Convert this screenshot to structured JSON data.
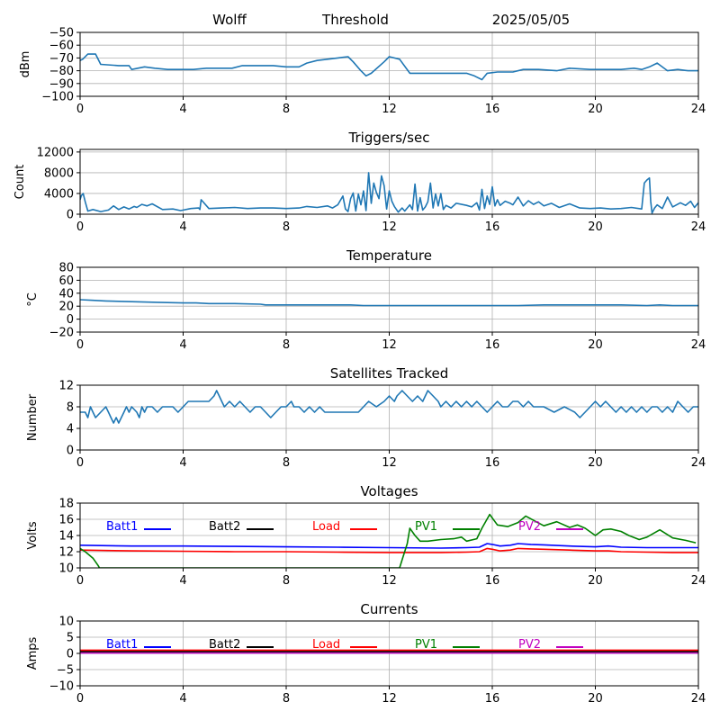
{
  "header": {
    "station": "Wolff",
    "mode": "Threshold",
    "date": "2025/05/05"
  },
  "colors": {
    "series": "#1f77b4",
    "grid": "#b0b0b0",
    "Batt1": "#0000ff",
    "Batt2": "#000000",
    "Load": "#ff0000",
    "PV1": "#008000",
    "PV2": "#c000c0"
  },
  "chart_data": [
    {
      "type": "line",
      "title": "",
      "ylabel": "dBm",
      "xlim": [
        0,
        24
      ],
      "ylim": [
        -100,
        -50
      ],
      "xticks": [
        0,
        4,
        8,
        12,
        16,
        20,
        24
      ],
      "yticks": [
        -100,
        -90,
        -80,
        -70,
        -60,
        -50
      ],
      "series": [
        {
          "x": [
            0,
            0.1,
            0.3,
            0.6,
            0.8,
            1.5,
            1.9,
            2.0,
            2.5,
            2.9,
            3.4,
            3.9,
            4.4,
            4.9,
            5.4,
            5.9,
            6.3,
            7.0,
            7.5,
            8.0,
            8.5,
            8.8,
            9.2,
            9.6,
            10.0,
            10.4,
            10.6,
            10.9,
            11.1,
            11.3,
            11.8,
            12.0,
            12.4,
            12.8,
            13.5,
            14.5,
            15.0,
            15.3,
            15.6,
            15.8,
            16.2,
            16.8,
            17.2,
            17.8,
            18.5,
            19.0,
            19.8,
            20.5,
            21.0,
            21.5,
            21.8,
            22.1,
            22.4,
            22.8,
            23.2,
            23.6,
            24.0
          ],
          "y": [
            -72,
            -71,
            -67,
            -67,
            -75,
            -76,
            -76,
            -79,
            -77,
            -78,
            -79,
            -79,
            -79,
            -78,
            -78,
            -78,
            -76,
            -76,
            -76,
            -77,
            -77,
            -74,
            -72,
            -71,
            -70,
            -69,
            -73,
            -80,
            -84,
            -82,
            -73,
            -69,
            -71,
            -82,
            -82,
            -82,
            -82,
            -84,
            -87,
            -82,
            -81,
            -81,
            -79,
            -79,
            -80,
            -78,
            -79,
            -79,
            -79,
            -78,
            -79,
            -77,
            -74,
            -80,
            -79,
            -80,
            -80
          ]
        }
      ]
    },
    {
      "type": "line",
      "title": "Triggers/sec",
      "ylabel": "Count",
      "xlim": [
        0,
        24
      ],
      "ylim": [
        0,
        12500
      ],
      "xticks": [
        0,
        4,
        8,
        12,
        16,
        20,
        24
      ],
      "yticks": [
        0,
        4000,
        8000,
        12000
      ],
      "series": [
        {
          "x": [
            0,
            0.05,
            0.12,
            0.2,
            0.3,
            0.5,
            0.8,
            1.1,
            1.3,
            1.5,
            1.7,
            1.9,
            2.1,
            2.2,
            2.4,
            2.6,
            2.8,
            3.2,
            3.6,
            3.9,
            4.3,
            4.6,
            4.65,
            4.7,
            5.0,
            5.5,
            6.0,
            6.5,
            7.0,
            7.5,
            8.0,
            8.5,
            8.8,
            9.2,
            9.6,
            9.8,
            10.0,
            10.2,
            10.3,
            10.4,
            10.5,
            10.6,
            10.7,
            10.8,
            10.9,
            11.0,
            11.1,
            11.2,
            11.3,
            11.4,
            11.5,
            11.6,
            11.7,
            11.8,
            11.9,
            12.0,
            12.1,
            12.2,
            12.35,
            12.5,
            12.6,
            12.8,
            12.9,
            13.0,
            13.1,
            13.2,
            13.3,
            13.4,
            13.5,
            13.6,
            13.7,
            13.8,
            13.9,
            14.0,
            14.1,
            14.2,
            14.4,
            14.6,
            15.0,
            15.2,
            15.4,
            15.5,
            15.6,
            15.7,
            15.8,
            15.9,
            16.0,
            16.1,
            16.2,
            16.3,
            16.5,
            16.7,
            16.8,
            17.0,
            17.2,
            17.4,
            17.6,
            17.8,
            18.0,
            18.3,
            18.6,
            19.0,
            19.4,
            19.8,
            20.2,
            20.6,
            21.0,
            21.4,
            21.8,
            21.9,
            22.0,
            22.1,
            22.15,
            22.2,
            22.3,
            22.4,
            22.6,
            22.8,
            23.0,
            23.3,
            23.5,
            23.7,
            23.85,
            24.0
          ],
          "y": [
            2800,
            3600,
            4000,
            2400,
            600,
            900,
            500,
            800,
            1600,
            900,
            1400,
            1000,
            1500,
            1300,
            1900,
            1600,
            2000,
            900,
            1000,
            700,
            1100,
            1200,
            900,
            2800,
            1100,
            1200,
            1300,
            1100,
            1200,
            1200,
            1100,
            1200,
            1500,
            1300,
            1600,
            1200,
            1800,
            3500,
            1000,
            500,
            3000,
            4100,
            600,
            3900,
            1800,
            4500,
            700,
            8000,
            2100,
            6000,
            4200,
            3000,
            7400,
            5500,
            1000,
            4500,
            2500,
            1500,
            400,
            1200,
            600,
            1800,
            900,
            5800,
            600,
            3200,
            800,
            1400,
            2400,
            6000,
            1200,
            3900,
            1600,
            4000,
            900,
            1700,
            1200,
            2100,
            1700,
            1400,
            2200,
            800,
            4800,
            1100,
            3500,
            1900,
            5300,
            1600,
            2800,
            1700,
            2500,
            2100,
            1800,
            3300,
            1600,
            2600,
            1900,
            2400,
            1600,
            2100,
            1300,
            2000,
            1200,
            1100,
            1200,
            1000,
            1100,
            1300,
            1000,
            6000,
            6600,
            7000,
            2500,
            200,
            1200,
            1800,
            1100,
            3300,
            1400,
            2200,
            1700,
            2500,
            1300,
            2200
          ]
        }
      ]
    },
    {
      "type": "line",
      "title": "Temperature",
      "ylabel": "°C",
      "xlim": [
        0,
        24
      ],
      "ylim": [
        -20,
        80
      ],
      "xticks": [
        0,
        4,
        8,
        12,
        16,
        20,
        24
      ],
      "yticks": [
        -20,
        0,
        20,
        40,
        60,
        80
      ],
      "series": [
        {
          "x": [
            0,
            0.5,
            1.0,
            2.0,
            3.0,
            4.0,
            4.5,
            5.0,
            6.0,
            7.0,
            7.2,
            8.0,
            9.0,
            10.0,
            10.5,
            11.0,
            12.0,
            13.0,
            14.0,
            15.0,
            16.0,
            17.0,
            18.0,
            19.0,
            20.0,
            21.0,
            22.0,
            22.5,
            23.0,
            24.0
          ],
          "y": [
            30,
            29,
            28,
            27,
            26,
            25,
            25,
            24,
            24,
            23,
            22,
            22,
            22,
            22,
            22,
            21,
            21,
            21,
            21,
            21,
            21,
            21,
            22,
            22,
            22,
            22,
            21,
            22,
            21,
            21
          ]
        }
      ]
    },
    {
      "type": "line",
      "title": "Satellites Tracked",
      "ylabel": "Number",
      "xlim": [
        0,
        24
      ],
      "ylim": [
        0,
        12
      ],
      "xticks": [
        0,
        4,
        8,
        12,
        16,
        20,
        24
      ],
      "yticks": [
        0,
        4,
        8,
        12
      ],
      "series": [
        {
          "x": [
            0,
            0.2,
            0.3,
            0.4,
            0.5,
            0.6,
            0.8,
            1.0,
            1.1,
            1.2,
            1.3,
            1.4,
            1.5,
            1.6,
            1.7,
            1.8,
            1.9,
            2.0,
            2.2,
            2.3,
            2.4,
            2.5,
            2.6,
            2.8,
            3.0,
            3.2,
            3.4,
            3.6,
            3.8,
            4.0,
            4.2,
            4.6,
            5.0,
            5.2,
            5.3,
            5.4,
            5.5,
            5.6,
            5.8,
            6.0,
            6.2,
            6.4,
            6.6,
            6.8,
            7.0,
            7.2,
            7.4,
            7.6,
            7.8,
            8.0,
            8.2,
            8.3,
            8.5,
            8.7,
            8.9,
            9.1,
            9.3,
            9.5,
            10.0,
            10.5,
            10.8,
            11.0,
            11.2,
            11.5,
            11.8,
            12.0,
            12.2,
            12.3,
            12.5,
            12.7,
            12.9,
            13.1,
            13.3,
            13.5,
            13.7,
            13.9,
            14.0,
            14.2,
            14.4,
            14.6,
            14.8,
            15.0,
            15.2,
            15.4,
            15.6,
            15.8,
            16.0,
            16.2,
            16.4,
            16.6,
            16.8,
            17.0,
            17.2,
            17.4,
            17.6,
            17.8,
            18.0,
            18.4,
            18.8,
            19.2,
            19.4,
            19.6,
            19.8,
            20.0,
            20.2,
            20.4,
            20.6,
            20.8,
            21.0,
            21.2,
            21.4,
            21.6,
            21.8,
            22.0,
            22.2,
            22.4,
            22.6,
            22.8,
            23.0,
            23.2,
            23.4,
            23.6,
            23.8,
            24.0
          ],
          "y": [
            7,
            7,
            6,
            8,
            7,
            6,
            7,
            8,
            7,
            6,
            5,
            6,
            5,
            6,
            7,
            8,
            7,
            8,
            7,
            6,
            8,
            7,
            8,
            8,
            7,
            8,
            8,
            8,
            7,
            8,
            9,
            9,
            9,
            10,
            11,
            10,
            9,
            8,
            9,
            8,
            9,
            8,
            7,
            8,
            8,
            7,
            6,
            7,
            8,
            8,
            9,
            8,
            8,
            7,
            8,
            7,
            8,
            7,
            7,
            7,
            7,
            8,
            9,
            8,
            9,
            10,
            9,
            10,
            11,
            10,
            9,
            10,
            9,
            11,
            10,
            9,
            8,
            9,
            8,
            9,
            8,
            9,
            8,
            9,
            8,
            7,
            8,
            9,
            8,
            8,
            9,
            9,
            8,
            9,
            8,
            8,
            8,
            7,
            8,
            7,
            6,
            7,
            8,
            9,
            8,
            9,
            8,
            7,
            8,
            7,
            8,
            7,
            8,
            7,
            8,
            8,
            7,
            8,
            7,
            9,
            8,
            7,
            8,
            8
          ]
        }
      ]
    },
    {
      "type": "line",
      "title": "Voltages",
      "ylabel": "Volts",
      "xlim": [
        0,
        24
      ],
      "ylim": [
        10,
        18
      ],
      "xticks": [
        0,
        4,
        8,
        12,
        16,
        20,
        24
      ],
      "yticks": [
        10,
        12,
        14,
        16,
        18
      ],
      "legend": [
        "Batt1",
        "Batt2",
        "Load",
        "PV1",
        "PV2"
      ],
      "series": [
        {
          "name": "Batt1",
          "x": [
            0,
            2,
            4,
            6,
            8,
            10,
            12,
            14,
            15,
            15.5,
            15.8,
            16.0,
            16.3,
            16.7,
            17.0,
            17.5,
            18.0,
            19.0,
            20.0,
            20.5,
            21.0,
            22.0,
            23.0,
            24.0
          ],
          "y": [
            12.8,
            12.7,
            12.7,
            12.65,
            12.6,
            12.55,
            12.5,
            12.45,
            12.5,
            12.55,
            13.0,
            12.9,
            12.7,
            12.8,
            13.0,
            12.9,
            12.85,
            12.7,
            12.6,
            12.7,
            12.55,
            12.5,
            12.5,
            12.5
          ]
        },
        {
          "name": "Batt2",
          "x": [],
          "y": []
        },
        {
          "name": "Load",
          "x": [
            0,
            2,
            4,
            6,
            8,
            10,
            12,
            14,
            15,
            15.5,
            15.8,
            16.0,
            16.3,
            16.7,
            17.0,
            17.5,
            18.0,
            19.0,
            20.0,
            20.5,
            21.0,
            22.0,
            23.0,
            24.0
          ],
          "y": [
            12.2,
            12.1,
            12.05,
            12.0,
            12.0,
            11.95,
            11.9,
            11.9,
            11.95,
            12.0,
            12.4,
            12.3,
            12.1,
            12.2,
            12.4,
            12.35,
            12.3,
            12.2,
            12.1,
            12.1,
            12.0,
            11.95,
            11.9,
            11.9
          ]
        },
        {
          "name": "PV1",
          "x": [
            0,
            0.2,
            0.5,
            0.7,
            0.75,
            12.4,
            12.5,
            12.7,
            12.8,
            13.0,
            13.2,
            13.5,
            14.0,
            14.5,
            14.8,
            15.0,
            15.4,
            15.6,
            15.9,
            16.2,
            16.6,
            17.0,
            17.3,
            17.7,
            18.0,
            18.5,
            19.0,
            19.3,
            19.6,
            20.0,
            20.3,
            20.6,
            21.0,
            21.3,
            21.7,
            22.0,
            22.5,
            23.0,
            23.5,
            23.9
          ],
          "y": [
            12.4,
            12.0,
            11.2,
            10.3,
            10,
            10,
            11.0,
            13.0,
            14.9,
            14.0,
            13.3,
            13.3,
            13.5,
            13.6,
            13.8,
            13.3,
            13.6,
            14.9,
            16.6,
            15.3,
            15.1,
            15.6,
            16.4,
            15.7,
            15.2,
            15.7,
            15.0,
            15.3,
            14.9,
            14.0,
            14.7,
            14.8,
            14.5,
            14.0,
            13.5,
            13.8,
            14.7,
            13.7,
            13.4,
            13.1
          ]
        },
        {
          "name": "PV2",
          "x": [],
          "y": []
        }
      ]
    },
    {
      "type": "line",
      "title": "Currents",
      "ylabel": "Amps",
      "xlim": [
        0,
        24
      ],
      "ylim": [
        -10,
        10
      ],
      "xticks": [
        0,
        4,
        8,
        12,
        16,
        20,
        24
      ],
      "yticks": [
        -10,
        -5,
        0,
        5,
        10
      ],
      "legend": [
        "Batt1",
        "Batt2",
        "Load",
        "PV1",
        "PV2"
      ],
      "series": [
        {
          "name": "Batt1",
          "x": [
            0,
            24
          ],
          "y": [
            0.3,
            0.3
          ]
        },
        {
          "name": "Batt2",
          "x": [
            0,
            24
          ],
          "y": [
            0.6,
            0.6
          ]
        },
        {
          "name": "Load",
          "x": [
            0,
            24
          ],
          "y": [
            1.0,
            1.0
          ]
        },
        {
          "name": "PV1",
          "x": [
            0,
            24
          ],
          "y": [
            0.2,
            0.2
          ]
        },
        {
          "name": "PV2",
          "x": [
            0,
            24
          ],
          "y": [
            0.1,
            0.1
          ]
        }
      ]
    }
  ]
}
